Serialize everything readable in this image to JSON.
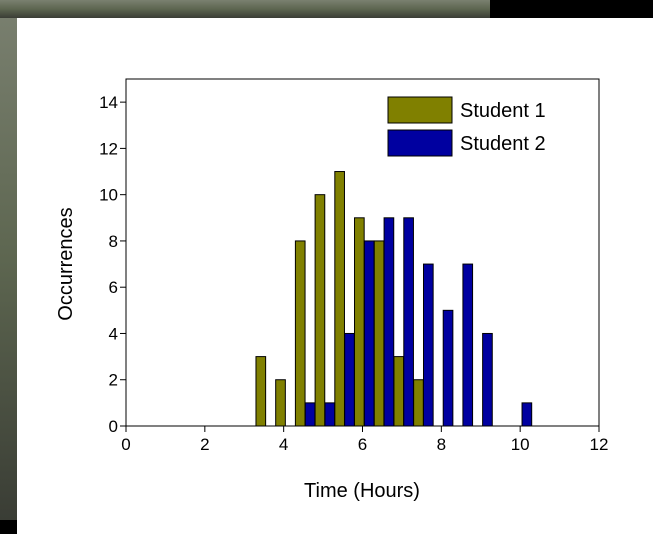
{
  "chart_data": {
    "type": "bar",
    "x_label": "Time (Hours)",
    "y_label": "Occurrences",
    "xlim": [
      0,
      12
    ],
    "xticks": [
      0,
      2,
      4,
      6,
      8,
      10,
      12
    ],
    "ylim": [
      0,
      15
    ],
    "yticks": [
      0,
      2,
      4,
      6,
      8,
      10,
      12,
      14
    ],
    "legend": "upper right",
    "series": [
      {
        "name": "Student 1",
        "color": "#808000",
        "x": [
          3.42,
          3.92,
          4.42,
          4.92,
          5.42,
          5.92,
          6.42,
          6.92,
          7.42
        ],
        "values": [
          3,
          2,
          8,
          10,
          11,
          9,
          8,
          3,
          2
        ]
      },
      {
        "name": "Student 2",
        "color": "#0000a0",
        "x": [
          4.67,
          5.17,
          5.67,
          6.17,
          6.67,
          7.17,
          7.67,
          8.17,
          8.67,
          9.17,
          10.17
        ],
        "values": [
          1,
          1,
          4,
          8,
          9,
          9,
          7,
          5,
          7,
          4,
          1
        ]
      }
    ]
  }
}
